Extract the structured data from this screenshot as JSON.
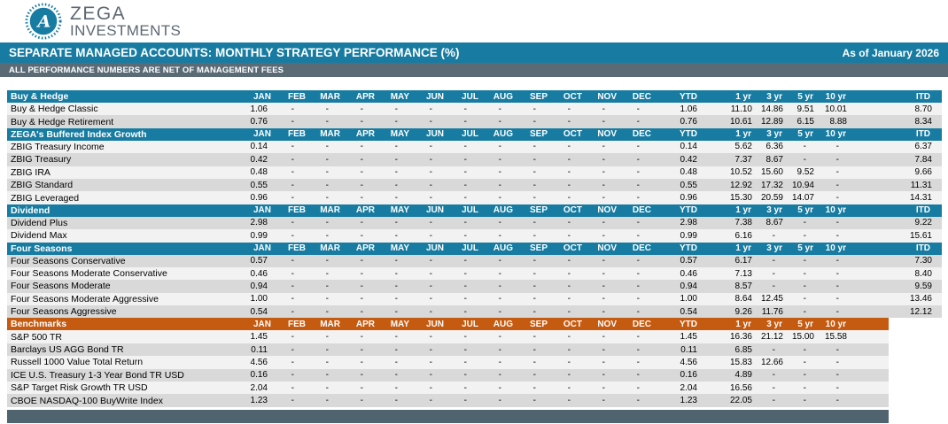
{
  "logo": {
    "line1": "ZEGA",
    "line2": "INVESTMENTS",
    "icon": "compass-a-icon"
  },
  "header": {
    "title": "SEPARATE MANAGED ACCOUNTS: MONTHLY STRATEGY PERFORMANCE (%)",
    "as_of": "As of January 2026",
    "subtitle": "ALL PERFORMANCE NUMBERS ARE NET OF MANAGEMENT FEES"
  },
  "colors": {
    "teal": "#187CA2",
    "orange": "#C55A11",
    "subtitle_slate": "#5A6B76",
    "bottom_bar_slate": "#50646F",
    "row_light": "#F2F2F2",
    "row_dark": "#D9D9D9"
  },
  "table": {
    "columns": [
      "JAN",
      "FEB",
      "MAR",
      "APR",
      "MAY",
      "JUN",
      "JUL",
      "AUG",
      "SEP",
      "OCT",
      "NOV",
      "DEC",
      "YTD",
      "1 yr",
      "3 yr",
      "5 yr",
      "10 yr",
      "ITD"
    ],
    "sections": [
      {
        "title": "Buy & Hedge",
        "theme": "teal",
        "rows": [
          {
            "name": "Buy & Hedge Classic",
            "values": [
              "1.06",
              "-",
              "-",
              "-",
              "-",
              "-",
              "-",
              "-",
              "-",
              "-",
              "-",
              "-",
              "1.06",
              "11.10",
              "14.86",
              "9.51",
              "10.01",
              "8.70"
            ]
          },
          {
            "name": "Buy & Hedge Retirement",
            "values": [
              "0.76",
              "-",
              "-",
              "-",
              "-",
              "-",
              "-",
              "-",
              "-",
              "-",
              "-",
              "-",
              "0.76",
              "10.61",
              "12.89",
              "6.15",
              "8.88",
              "8.34"
            ]
          }
        ]
      },
      {
        "title": "ZEGA's Buffered Index Growth",
        "theme": "teal",
        "rows": [
          {
            "name": "ZBIG Treasury Income",
            "values": [
              "0.14",
              "-",
              "-",
              "-",
              "-",
              "-",
              "-",
              "-",
              "-",
              "-",
              "-",
              "-",
              "0.14",
              "5.62",
              "6.36",
              "-",
              "-",
              "6.37"
            ]
          },
          {
            "name": "ZBIG Treasury",
            "values": [
              "0.42",
              "-",
              "-",
              "-",
              "-",
              "-",
              "-",
              "-",
              "-",
              "-",
              "-",
              "-",
              "0.42",
              "7.37",
              "8.67",
              "-",
              "-",
              "7.84"
            ]
          },
          {
            "name": "ZBIG IRA",
            "values": [
              "0.48",
              "-",
              "-",
              "-",
              "-",
              "-",
              "-",
              "-",
              "-",
              "-",
              "-",
              "-",
              "0.48",
              "10.52",
              "15.60",
              "9.52",
              "-",
              "9.66"
            ]
          },
          {
            "name": "ZBIG Standard",
            "values": [
              "0.55",
              "-",
              "-",
              "-",
              "-",
              "-",
              "-",
              "-",
              "-",
              "-",
              "-",
              "-",
              "0.55",
              "12.92",
              "17.32",
              "10.94",
              "-",
              "11.31"
            ]
          },
          {
            "name": "ZBIG Leveraged",
            "values": [
              "0.96",
              "-",
              "-",
              "-",
              "-",
              "-",
              "-",
              "-",
              "-",
              "-",
              "-",
              "-",
              "0.96",
              "15.30",
              "20.59",
              "14.07",
              "-",
              "14.31"
            ]
          }
        ]
      },
      {
        "title": "Dividend",
        "theme": "teal",
        "rows": [
          {
            "name": "Dividend Plus",
            "values": [
              "2.98",
              "-",
              "-",
              "-",
              "-",
              "-",
              "-",
              "-",
              "-",
              "-",
              "-",
              "-",
              "2.98",
              "7.38",
              "8.67",
              "-",
              "-",
              "9.22"
            ]
          },
          {
            "name": "Dividend Max",
            "values": [
              "0.99",
              "-",
              "-",
              "-",
              "-",
              "-",
              "-",
              "-",
              "-",
              "-",
              "-",
              "-",
              "0.99",
              "6.16",
              "-",
              "-",
              "-",
              "15.61"
            ]
          }
        ]
      },
      {
        "title": "Four Seasons",
        "theme": "teal",
        "rows": [
          {
            "name": "Four Seasons Conservative",
            "values": [
              "0.57",
              "-",
              "-",
              "-",
              "-",
              "-",
              "-",
              "-",
              "-",
              "-",
              "-",
              "-",
              "0.57",
              "6.17",
              "-",
              "-",
              "-",
              "7.30"
            ]
          },
          {
            "name": "Four Seasons Moderate Conservative",
            "values": [
              "0.46",
              "-",
              "-",
              "-",
              "-",
              "-",
              "-",
              "-",
              "-",
              "-",
              "-",
              "-",
              "0.46",
              "7.13",
              "-",
              "-",
              "-",
              "8.40"
            ]
          },
          {
            "name": "Four Seasons Moderate",
            "values": [
              "0.94",
              "-",
              "-",
              "-",
              "-",
              "-",
              "-",
              "-",
              "-",
              "-",
              "-",
              "-",
              "0.94",
              "8.57",
              "-",
              "-",
              "-",
              "9.59"
            ]
          },
          {
            "name": "Four Seasons Moderate Aggressive",
            "values": [
              "1.00",
              "-",
              "-",
              "-",
              "-",
              "-",
              "-",
              "-",
              "-",
              "-",
              "-",
              "-",
              "1.00",
              "8.64",
              "12.45",
              "-",
              "-",
              "13.46"
            ]
          },
          {
            "name": "Four Seasons Aggressive",
            "values": [
              "0.54",
              "-",
              "-",
              "-",
              "-",
              "-",
              "-",
              "-",
              "-",
              "-",
              "-",
              "-",
              "0.54",
              "9.26",
              "11.76",
              "-",
              "-",
              "12.12"
            ]
          }
        ]
      },
      {
        "title": "Benchmarks",
        "theme": "orange",
        "no_itd": true,
        "rows": [
          {
            "name": "S&P 500 TR",
            "values": [
              "1.45",
              "-",
              "-",
              "-",
              "-",
              "-",
              "-",
              "-",
              "-",
              "-",
              "-",
              "-",
              "1.45",
              "16.36",
              "21.12",
              "15.00",
              "15.58"
            ]
          },
          {
            "name": "Barclays US AGG Bond TR",
            "values": [
              "0.11",
              "-",
              "-",
              "-",
              "-",
              "-",
              "-",
              "-",
              "-",
              "-",
              "-",
              "-",
              "0.11",
              "6.85",
              "-",
              "-",
              "-"
            ]
          },
          {
            "name": "Russell 1000 Value Total Return",
            "values": [
              "4.56",
              "-",
              "-",
              "-",
              "-",
              "-",
              "-",
              "-",
              "-",
              "-",
              "-",
              "-",
              "4.56",
              "15.83",
              "12.66",
              "-",
              "-"
            ]
          },
          {
            "name": "ICE U.S. Treasury 1-3 Year Bond TR USD",
            "values": [
              "0.16",
              "-",
              "-",
              "-",
              "-",
              "-",
              "-",
              "-",
              "-",
              "-",
              "-",
              "-",
              "0.16",
              "4.89",
              "-",
              "-",
              "-"
            ]
          },
          {
            "name": "S&P Target Risk Growth TR USD",
            "values": [
              "2.04",
              "-",
              "-",
              "-",
              "-",
              "-",
              "-",
              "-",
              "-",
              "-",
              "-",
              "-",
              "2.04",
              "16.56",
              "-",
              "-",
              "-"
            ],
            "white_cells": [
              14,
              15
            ]
          },
          {
            "name": "CBOE NASDAQ-100 BuyWrite Index",
            "values": [
              "1.23",
              "-",
              "-",
              "-",
              "-",
              "-",
              "-",
              "-",
              "-",
              "-",
              "-",
              "-",
              "1.23",
              "22.05",
              "-",
              "-",
              "-"
            ]
          }
        ]
      }
    ]
  }
}
